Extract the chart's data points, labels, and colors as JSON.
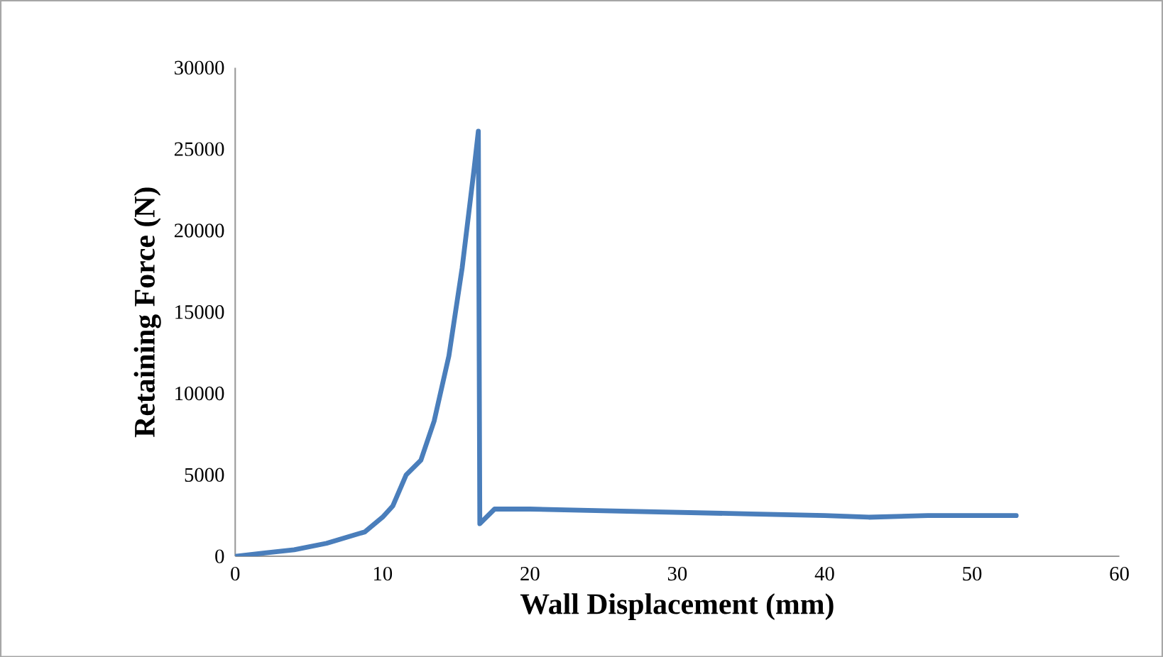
{
  "chart_data": {
    "type": "line",
    "xlabel": "Wall Displacement (mm)",
    "ylabel": "Retaining Force (N)",
    "series": [
      {
        "color": "#4a7ebb",
        "x": [
          0,
          2,
          4,
          6.2,
          8.8,
          10,
          10.7,
          11.6,
          12.6,
          13.5,
          14.5,
          15.4,
          16.2,
          16.5,
          16.6,
          17.6,
          20,
          25,
          30,
          35,
          40,
          43,
          47,
          50,
          53
        ],
        "values": [
          0,
          200,
          400,
          800,
          1500,
          2400,
          3100,
          5000,
          5900,
          8300,
          12300,
          17700,
          23700,
          26100,
          2000,
          2900,
          2900,
          2800,
          2700,
          2600,
          2500,
          2400,
          2500,
          2500,
          2500
        ]
      }
    ],
    "xlim": [
      0,
      60
    ],
    "xticks": [
      0,
      10,
      20,
      30,
      40,
      50,
      60
    ],
    "ylim": [
      0,
      30000
    ],
    "yticks": [
      0,
      5000,
      10000,
      15000,
      20000,
      25000,
      30000
    ],
    "grid": false,
    "marker": "none",
    "line_style": "solid"
  }
}
